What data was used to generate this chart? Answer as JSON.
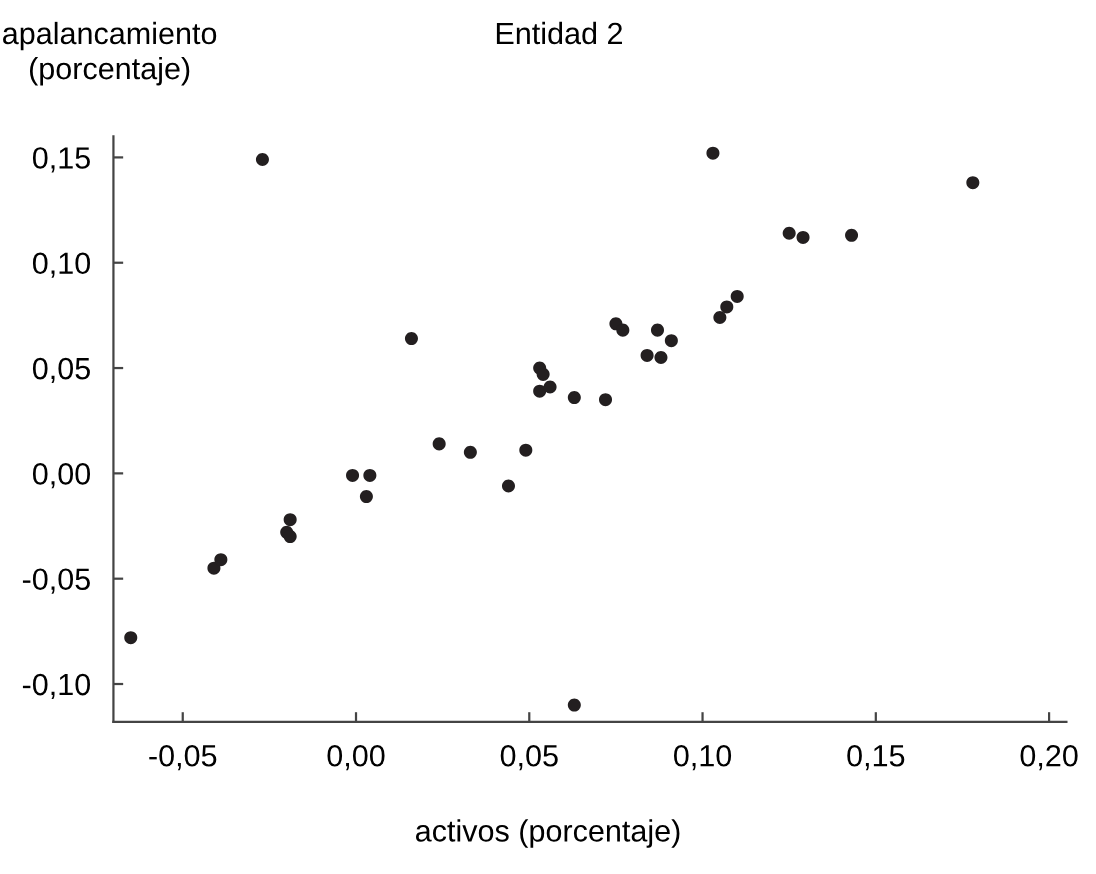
{
  "chart_data": {
    "type": "scatter",
    "title": "Entidad 2",
    "xlabel": "activos (porcentaje)",
    "ylabel": "apalancamiento\n(porcentaje)",
    "x": [
      -0.065,
      -0.027,
      -0.041,
      -0.039,
      -0.02,
      -0.019,
      -0.019,
      -0.001,
      0.004,
      0.003,
      0.016,
      0.024,
      0.033,
      0.044,
      0.049,
      0.053,
      0.054,
      0.053,
      0.056,
      0.063,
      0.063,
      0.103,
      0.178,
      0.125,
      0.129,
      0.143,
      0.11,
      0.107,
      0.105,
      0.075,
      0.077,
      0.087,
      0.091,
      0.084,
      0.088,
      0.072
    ],
    "values": [
      -0.078,
      0.149,
      -0.045,
      -0.041,
      -0.028,
      -0.022,
      -0.03,
      -0.001,
      -0.001,
      -0.011,
      0.064,
      0.014,
      0.01,
      -0.006,
      0.011,
      0.05,
      0.047,
      0.039,
      0.041,
      0.036,
      -0.11,
      0.152,
      0.138,
      0.114,
      0.112,
      0.113,
      0.084,
      0.079,
      0.074,
      0.071,
      0.068,
      0.068,
      0.063,
      0.056,
      0.055,
      0.035
    ],
    "color": "#231f20",
    "marker": "circle",
    "grid": false,
    "legend": false,
    "xlim": [
      -0.07,
      0.205
    ],
    "ylim": [
      -0.118,
      0.16
    ],
    "xticks": [
      {
        "value": -0.05,
        "label": "-0,05"
      },
      {
        "value": 0.0,
        "label": "0,00"
      },
      {
        "value": 0.05,
        "label": "0,05"
      },
      {
        "value": 0.1,
        "label": "0,10"
      },
      {
        "value": 0.15,
        "label": "0,15"
      },
      {
        "value": 0.2,
        "label": "0,20"
      }
    ],
    "yticks": [
      {
        "value": -0.1,
        "label": "-0,10"
      },
      {
        "value": -0.05,
        "label": "-0,05"
      },
      {
        "value": 0.0,
        "label": "0,00"
      },
      {
        "value": 0.05,
        "label": "0,05"
      },
      {
        "value": 0.1,
        "label": "0,10"
      },
      {
        "value": 0.15,
        "label": "0,15"
      }
    ]
  }
}
